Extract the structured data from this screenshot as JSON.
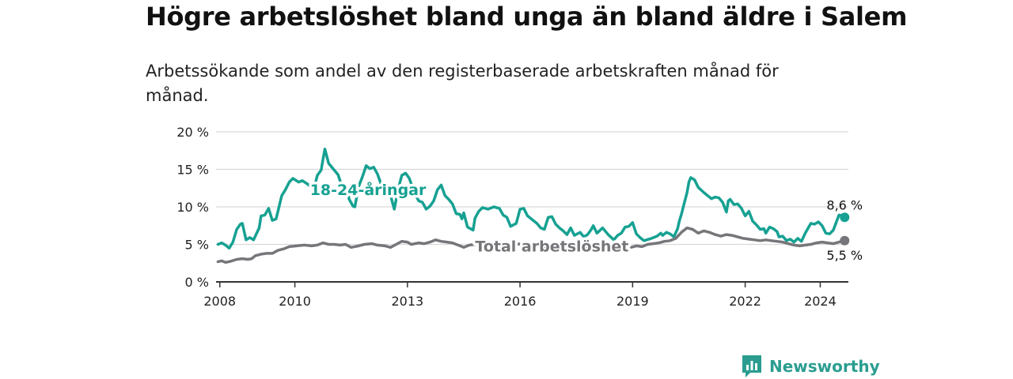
{
  "title": "Högre arbetslöshet bland unga än bland äldre i Salem",
  "subtitle": "Arbetssökande som andel av den registerbaserade arbetskraften månad för månad.",
  "brand": {
    "name": "Newsworthy",
    "color": "#2a9d8f",
    "icon": "bar-chart-icon"
  },
  "chart_data": {
    "type": "line",
    "title": "Högre arbetslöshet bland unga än bland äldre i Salem",
    "xlabel": "",
    "ylabel": "",
    "xlim": [
      2007.9,
      2024.75
    ],
    "ylim": [
      0,
      20
    ],
    "grid": true,
    "x_ticks": [
      {
        "value": 2008,
        "label": "2008"
      },
      {
        "value": 2010,
        "label": "2010"
      },
      {
        "value": 2013,
        "label": "2013"
      },
      {
        "value": 2016,
        "label": "2016"
      },
      {
        "value": 2019,
        "label": "2019"
      },
      {
        "value": 2022,
        "label": "2022"
      },
      {
        "value": 2024,
        "label": "2024"
      }
    ],
    "y_ticks": [
      {
        "value": 0,
        "label": "0 %"
      },
      {
        "value": 5,
        "label": "5 %"
      },
      {
        "value": 10,
        "label": "10 %"
      },
      {
        "value": 15,
        "label": "15 %"
      },
      {
        "value": 20,
        "label": "20 %"
      }
    ],
    "series": [
      {
        "name": "18-24-åringar",
        "color": "#16a192",
        "label_at": [
          2011.95,
          12.3
        ],
        "end_label": "8,6 %",
        "points": [
          [
            2007.95,
            5.0
          ],
          [
            2008.05,
            5.2
          ],
          [
            2008.15,
            4.9
          ],
          [
            2008.25,
            4.5
          ],
          [
            2008.35,
            5.3
          ],
          [
            2008.45,
            7.0
          ],
          [
            2008.55,
            7.7
          ],
          [
            2008.6,
            7.8
          ],
          [
            2008.7,
            5.6
          ],
          [
            2008.8,
            5.9
          ],
          [
            2008.9,
            5.6
          ],
          [
            2009.05,
            7.2
          ],
          [
            2009.1,
            8.8
          ],
          [
            2009.2,
            8.9
          ],
          [
            2009.3,
            9.8
          ],
          [
            2009.4,
            8.2
          ],
          [
            2009.5,
            8.4
          ],
          [
            2009.65,
            11.5
          ],
          [
            2009.75,
            12.3
          ],
          [
            2009.85,
            13.3
          ],
          [
            2009.95,
            13.8
          ],
          [
            2010.1,
            13.3
          ],
          [
            2010.2,
            13.5
          ],
          [
            2010.35,
            13.0
          ],
          [
            2010.5,
            12.3
          ],
          [
            2010.6,
            14.2
          ],
          [
            2010.7,
            14.9
          ],
          [
            2010.75,
            16.3
          ],
          [
            2010.8,
            17.7
          ],
          [
            2010.9,
            15.8
          ],
          [
            2011.0,
            15.2
          ],
          [
            2011.15,
            14.3
          ],
          [
            2011.25,
            12.8
          ],
          [
            2011.35,
            12.9
          ],
          [
            2011.45,
            11.0
          ],
          [
            2011.55,
            10.1
          ],
          [
            2011.6,
            10.0
          ],
          [
            2011.7,
            12.7
          ],
          [
            2011.8,
            14.0
          ],
          [
            2011.9,
            15.5
          ],
          [
            2012.0,
            15.1
          ],
          [
            2012.1,
            15.3
          ],
          [
            2012.2,
            14.4
          ],
          [
            2012.3,
            13.0
          ],
          [
            2012.45,
            11.8
          ],
          [
            2012.55,
            11.5
          ],
          [
            2012.65,
            9.7
          ],
          [
            2012.75,
            12.3
          ],
          [
            2012.85,
            14.2
          ],
          [
            2012.95,
            14.5
          ],
          [
            2013.05,
            13.8
          ],
          [
            2013.2,
            11.7
          ],
          [
            2013.3,
            10.8
          ],
          [
            2013.4,
            10.6
          ],
          [
            2013.5,
            9.7
          ],
          [
            2013.6,
            10.1
          ],
          [
            2013.7,
            10.8
          ],
          [
            2013.8,
            12.3
          ],
          [
            2013.9,
            12.9
          ],
          [
            2014.0,
            11.5
          ],
          [
            2014.1,
            11.0
          ],
          [
            2014.2,
            10.4
          ],
          [
            2014.3,
            9.1
          ],
          [
            2014.4,
            9.0
          ],
          [
            2014.45,
            8.4
          ],
          [
            2014.5,
            9.2
          ],
          [
            2014.6,
            7.3
          ],
          [
            2014.75,
            6.9
          ],
          [
            2014.8,
            8.5
          ],
          [
            2014.9,
            9.4
          ],
          [
            2015.0,
            9.9
          ],
          [
            2015.15,
            9.7
          ],
          [
            2015.3,
            10.0
          ],
          [
            2015.45,
            9.8
          ],
          [
            2015.55,
            8.9
          ],
          [
            2015.65,
            8.6
          ],
          [
            2015.75,
            7.4
          ],
          [
            2015.9,
            7.8
          ],
          [
            2016.0,
            9.7
          ],
          [
            2016.1,
            9.8
          ],
          [
            2016.2,
            8.8
          ],
          [
            2016.35,
            8.2
          ],
          [
            2016.45,
            7.8
          ],
          [
            2016.55,
            7.2
          ],
          [
            2016.65,
            7.0
          ],
          [
            2016.75,
            8.6
          ],
          [
            2016.85,
            8.7
          ],
          [
            2016.95,
            7.7
          ],
          [
            2017.05,
            7.2
          ],
          [
            2017.15,
            6.8
          ],
          [
            2017.25,
            6.3
          ],
          [
            2017.35,
            7.2
          ],
          [
            2017.45,
            6.2
          ],
          [
            2017.6,
            6.6
          ],
          [
            2017.7,
            6.0
          ],
          [
            2017.8,
            6.3
          ],
          [
            2017.9,
            7.0
          ],
          [
            2017.95,
            7.5
          ],
          [
            2018.05,
            6.5
          ],
          [
            2018.2,
            7.2
          ],
          [
            2018.35,
            6.3
          ],
          [
            2018.5,
            5.6
          ],
          [
            2018.6,
            6.2
          ],
          [
            2018.7,
            6.5
          ],
          [
            2018.8,
            7.3
          ],
          [
            2018.9,
            7.4
          ],
          [
            2019.0,
            7.9
          ],
          [
            2019.1,
            6.4
          ],
          [
            2019.2,
            5.9
          ],
          [
            2019.3,
            5.5
          ],
          [
            2019.5,
            5.8
          ],
          [
            2019.65,
            6.1
          ],
          [
            2019.75,
            6.5
          ],
          [
            2019.8,
            6.2
          ],
          [
            2019.9,
            6.6
          ],
          [
            2020.0,
            6.4
          ],
          [
            2020.1,
            6.0
          ],
          [
            2020.2,
            7.1
          ],
          [
            2020.25,
            8.2
          ],
          [
            2020.3,
            9.0
          ],
          [
            2020.35,
            10.0
          ],
          [
            2020.45,
            11.9
          ],
          [
            2020.5,
            13.3
          ],
          [
            2020.55,
            13.9
          ],
          [
            2020.65,
            13.6
          ],
          [
            2020.75,
            12.6
          ],
          [
            2020.9,
            11.9
          ],
          [
            2021.0,
            11.5
          ],
          [
            2021.1,
            11.1
          ],
          [
            2021.2,
            11.3
          ],
          [
            2021.3,
            11.2
          ],
          [
            2021.4,
            10.6
          ],
          [
            2021.5,
            9.3
          ],
          [
            2021.55,
            10.8
          ],
          [
            2021.6,
            11.0
          ],
          [
            2021.7,
            10.3
          ],
          [
            2021.8,
            10.4
          ],
          [
            2021.9,
            9.8
          ],
          [
            2022.0,
            8.8
          ],
          [
            2022.1,
            9.4
          ],
          [
            2022.2,
            8.1
          ],
          [
            2022.3,
            7.6
          ],
          [
            2022.4,
            7.0
          ],
          [
            2022.5,
            7.1
          ],
          [
            2022.55,
            6.5
          ],
          [
            2022.65,
            7.3
          ],
          [
            2022.75,
            7.1
          ],
          [
            2022.85,
            6.7
          ],
          [
            2022.9,
            6.0
          ],
          [
            2023.0,
            6.1
          ],
          [
            2023.1,
            5.5
          ],
          [
            2023.2,
            5.7
          ],
          [
            2023.3,
            5.3
          ],
          [
            2023.4,
            5.8
          ],
          [
            2023.5,
            5.4
          ],
          [
            2023.6,
            6.5
          ],
          [
            2023.75,
            7.8
          ],
          [
            2023.85,
            7.7
          ],
          [
            2023.95,
            8.0
          ],
          [
            2024.05,
            7.5
          ],
          [
            2024.15,
            6.5
          ],
          [
            2024.25,
            6.4
          ],
          [
            2024.35,
            6.9
          ],
          [
            2024.5,
            8.9
          ],
          [
            2024.6,
            8.8
          ],
          [
            2024.65,
            8.6
          ]
        ]
      },
      {
        "name": "Total arbetslöshet",
        "color": "#76767a",
        "label_at": [
          2016.85,
          4.8
        ],
        "end_label": "5,5 %",
        "points": [
          [
            2007.95,
            2.7
          ],
          [
            2008.05,
            2.8
          ],
          [
            2008.15,
            2.6
          ],
          [
            2008.25,
            2.7
          ],
          [
            2008.45,
            3.0
          ],
          [
            2008.6,
            3.1
          ],
          [
            2008.75,
            3.0
          ],
          [
            2008.85,
            3.1
          ],
          [
            2008.95,
            3.5
          ],
          [
            2009.1,
            3.7
          ],
          [
            2009.25,
            3.8
          ],
          [
            2009.4,
            3.8
          ],
          [
            2009.55,
            4.2
          ],
          [
            2009.7,
            4.4
          ],
          [
            2009.85,
            4.7
          ],
          [
            2010.05,
            4.8
          ],
          [
            2010.25,
            4.9
          ],
          [
            2010.45,
            4.8
          ],
          [
            2010.6,
            4.9
          ],
          [
            2010.75,
            5.2
          ],
          [
            2010.9,
            5.0
          ],
          [
            2011.05,
            5.0
          ],
          [
            2011.2,
            4.9
          ],
          [
            2011.35,
            5.0
          ],
          [
            2011.5,
            4.6
          ],
          [
            2011.7,
            4.8
          ],
          [
            2011.85,
            5.0
          ],
          [
            2012.05,
            5.1
          ],
          [
            2012.2,
            4.9
          ],
          [
            2012.4,
            4.8
          ],
          [
            2012.55,
            4.6
          ],
          [
            2012.7,
            5.0
          ],
          [
            2012.85,
            5.4
          ],
          [
            2013.0,
            5.3
          ],
          [
            2013.1,
            5.0
          ],
          [
            2013.3,
            5.2
          ],
          [
            2013.45,
            5.1
          ],
          [
            2013.6,
            5.3
          ],
          [
            2013.75,
            5.6
          ],
          [
            2013.9,
            5.4
          ],
          [
            2014.05,
            5.3
          ],
          [
            2014.2,
            5.2
          ],
          [
            2014.35,
            4.9
          ],
          [
            2014.5,
            4.6
          ],
          [
            2014.65,
            4.9
          ],
          [
            2014.8,
            5.0
          ],
          [
            2014.95,
            5.0
          ],
          [
            2015.1,
            5.1
          ],
          [
            2015.3,
            4.9
          ],
          [
            2015.45,
            4.7
          ],
          [
            2015.6,
            4.8
          ],
          [
            2015.75,
            5.0
          ],
          [
            2015.9,
            5.0
          ],
          [
            2016.05,
            5.1
          ],
          [
            2016.2,
            4.9
          ],
          [
            2016.35,
            4.6
          ],
          [
            2016.5,
            4.4
          ],
          [
            2016.65,
            4.5
          ],
          [
            2016.8,
            4.2
          ],
          [
            2016.95,
            4.6
          ],
          [
            2017.05,
            4.4
          ],
          [
            2017.15,
            4.3
          ],
          [
            2017.3,
            4.5
          ],
          [
            2017.45,
            4.4
          ],
          [
            2017.6,
            4.3
          ],
          [
            2017.75,
            4.6
          ],
          [
            2017.9,
            4.5
          ],
          [
            2018.05,
            4.5
          ],
          [
            2018.2,
            4.4
          ],
          [
            2018.35,
            4.3
          ],
          [
            2018.5,
            4.6
          ],
          [
            2018.65,
            4.7
          ],
          [
            2018.8,
            4.5
          ],
          [
            2018.95,
            4.6
          ],
          [
            2019.1,
            4.8
          ],
          [
            2019.25,
            4.7
          ],
          [
            2019.4,
            5.0
          ],
          [
            2019.55,
            5.1
          ],
          [
            2019.7,
            5.2
          ],
          [
            2019.85,
            5.4
          ],
          [
            2020.0,
            5.5
          ],
          [
            2020.15,
            5.8
          ],
          [
            2020.3,
            6.6
          ],
          [
            2020.45,
            7.2
          ],
          [
            2020.6,
            7.0
          ],
          [
            2020.75,
            6.5
          ],
          [
            2020.9,
            6.8
          ],
          [
            2021.05,
            6.6
          ],
          [
            2021.2,
            6.3
          ],
          [
            2021.35,
            6.1
          ],
          [
            2021.5,
            6.3
          ],
          [
            2021.65,
            6.2
          ],
          [
            2021.8,
            6.0
          ],
          [
            2021.95,
            5.8
          ],
          [
            2022.1,
            5.7
          ],
          [
            2022.25,
            5.6
          ],
          [
            2022.4,
            5.5
          ],
          [
            2022.55,
            5.6
          ],
          [
            2022.7,
            5.5
          ],
          [
            2022.85,
            5.4
          ],
          [
            2023.0,
            5.3
          ],
          [
            2023.15,
            5.1
          ],
          [
            2023.3,
            4.9
          ],
          [
            2023.45,
            4.8
          ],
          [
            2023.6,
            4.9
          ],
          [
            2023.75,
            5.0
          ],
          [
            2023.9,
            5.2
          ],
          [
            2024.05,
            5.3
          ],
          [
            2024.2,
            5.2
          ],
          [
            2024.35,
            5.1
          ],
          [
            2024.5,
            5.3
          ],
          [
            2024.65,
            5.5
          ]
        ]
      }
    ]
  }
}
